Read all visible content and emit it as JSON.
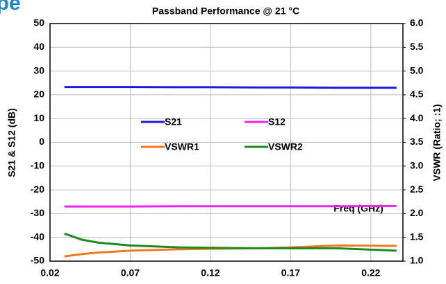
{
  "header": "ype",
  "chart_data": {
    "type": "line",
    "title": "Passband Performance @ 21 °C",
    "y_label": "S21 & S12 (dB)",
    "y2_label": "VSWR (Ratio; :1)",
    "annotation": "Freq (GHz)",
    "x": [
      0.029,
      0.04,
      0.05,
      0.07,
      0.1,
      0.12,
      0.15,
      0.17,
      0.2,
      0.236
    ],
    "series": [
      {
        "name": "S21",
        "color": "#1a1adf",
        "values": [
          23.3,
          23.3,
          23.3,
          23.3,
          23.2,
          23.2,
          23.1,
          23.1,
          23.0,
          23.0
        ]
      },
      {
        "name": "S12",
        "color": "#ee22ee",
        "values": [
          -27.0,
          -27.0,
          -27.0,
          -27.0,
          -26.9,
          -26.9,
          -26.9,
          -26.9,
          -26.9,
          -26.8
        ]
      },
      {
        "name": "VSWR1",
        "color": "#f07820",
        "values": [
          1.1,
          1.15,
          1.18,
          1.22,
          1.25,
          1.26,
          1.27,
          1.29,
          1.33,
          1.32
        ],
        "axis": "y2"
      },
      {
        "name": "VSWR2",
        "color": "#1e8a1e",
        "values": [
          1.58,
          1.45,
          1.39,
          1.33,
          1.29,
          1.28,
          1.27,
          1.27,
          1.27,
          1.22
        ],
        "axis": "y2"
      }
    ],
    "xlim": [
      0.02,
      0.24
    ],
    "xticks": [
      0.02,
      0.07,
      0.12,
      0.17,
      0.22
    ],
    "ylim": [
      -50,
      50
    ],
    "yticks": [
      -50,
      -40,
      -30,
      -20,
      -10,
      0,
      10,
      20,
      30,
      40,
      50
    ],
    "y2lim": [
      1,
      6
    ],
    "y2ticks": [
      {
        "value": 1,
        "label": "1.0"
      },
      1.5,
      {
        "value": 2,
        "label": "2.0"
      },
      2.5,
      {
        "value": 3,
        "label": "3.0"
      },
      3.5,
      {
        "value": 4,
        "label": "4.0"
      },
      4.5,
      {
        "value": 5,
        "label": "5.0"
      },
      5.5,
      {
        "value": 6,
        "label": "6.0"
      }
    ],
    "grid": true
  }
}
